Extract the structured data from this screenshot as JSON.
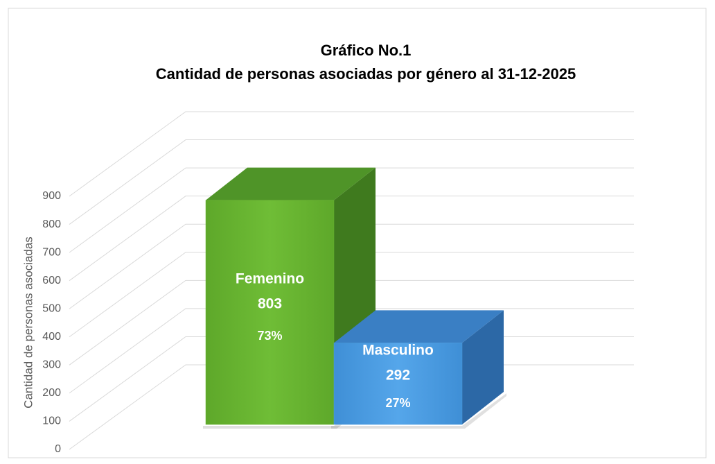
{
  "chart_data": {
    "type": "bar3d",
    "title": "Gráfico No.1",
    "subtitle": "Cantidad de personas asociadas por género al 31-12-2025",
    "y_label": "Cantidad de personas asociadas",
    "categories": [
      "Femenino",
      "Masculino"
    ],
    "values": [
      803,
      292
    ],
    "shares": [
      73,
      27
    ],
    "share_labels": [
      "73%",
      "27%"
    ],
    "colors": [
      "#67b22f",
      "#4a9de0"
    ],
    "ylim": [
      0,
      900
    ],
    "yticks": [
      0,
      100,
      200,
      300,
      400,
      500,
      600,
      700,
      800,
      900
    ],
    "grid": true
  }
}
